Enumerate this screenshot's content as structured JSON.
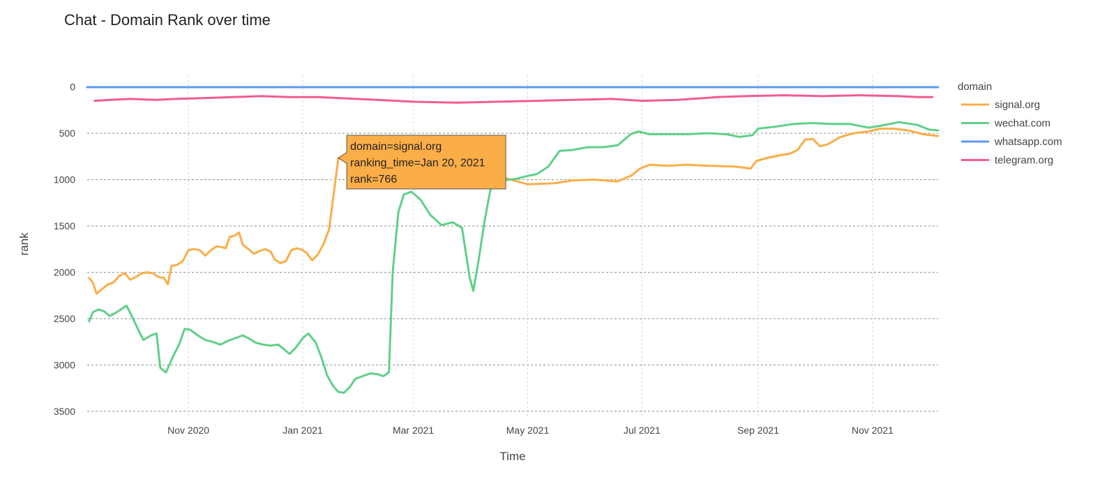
{
  "page": {
    "title": "Chat - Domain Rank over time"
  },
  "chart_data": {
    "type": "line",
    "title": "Chat - Domain Rank over time",
    "xlabel": "Time",
    "ylabel": "rank",
    "y_reversed": true,
    "ylim": [
      3560,
      -50
    ],
    "y_ticks": [
      0,
      500,
      1000,
      1500,
      2000,
      2500,
      3000,
      3500
    ],
    "x_range": [
      "2020-09-08",
      "2021-12-06"
    ],
    "x_ticks": [
      {
        "date": "2020-11-01",
        "label": "Nov 2020"
      },
      {
        "date": "2021-01-01",
        "label": "Jan 2021"
      },
      {
        "date": "2021-03-01",
        "label": "Mar 2021"
      },
      {
        "date": "2021-05-01",
        "label": "May 2021"
      },
      {
        "date": "2021-07-01",
        "label": "Jul 2021"
      },
      {
        "date": "2021-09-01",
        "label": "Sep 2021"
      },
      {
        "date": "2021-11-01",
        "label": "Nov 2021"
      }
    ],
    "grid": true,
    "legend": {
      "title": "domain",
      "placement": "right"
    },
    "series": [
      {
        "name": "signal.org",
        "color": "#fbad48",
        "points": [
          [
            "2020-09-09",
            2060
          ],
          [
            "2020-09-11",
            2110
          ],
          [
            "2020-09-13",
            2230
          ],
          [
            "2020-09-16",
            2180
          ],
          [
            "2020-09-19",
            2130
          ],
          [
            "2020-09-22",
            2110
          ],
          [
            "2020-09-25",
            2040
          ],
          [
            "2020-09-28",
            2010
          ],
          [
            "2020-10-01",
            2080
          ],
          [
            "2020-10-04",
            2050
          ],
          [
            "2020-10-07",
            2010
          ],
          [
            "2020-10-10",
            2000
          ],
          [
            "2020-10-13",
            2010
          ],
          [
            "2020-10-16",
            2050
          ],
          [
            "2020-10-19",
            2060
          ],
          [
            "2020-10-21",
            2130
          ],
          [
            "2020-10-23",
            1930
          ],
          [
            "2020-10-26",
            1920
          ],
          [
            "2020-10-29",
            1880
          ],
          [
            "2020-11-01",
            1760
          ],
          [
            "2020-11-04",
            1750
          ],
          [
            "2020-11-07",
            1760
          ],
          [
            "2020-11-10",
            1820
          ],
          [
            "2020-11-13",
            1760
          ],
          [
            "2020-11-16",
            1720
          ],
          [
            "2020-11-19",
            1730
          ],
          [
            "2020-11-21",
            1740
          ],
          [
            "2020-11-23",
            1620
          ],
          [
            "2020-11-26",
            1600
          ],
          [
            "2020-11-28",
            1570
          ],
          [
            "2020-11-30",
            1700
          ],
          [
            "2020-12-03",
            1750
          ],
          [
            "2020-12-06",
            1800
          ],
          [
            "2020-12-09",
            1770
          ],
          [
            "2020-12-12",
            1750
          ],
          [
            "2020-12-15",
            1780
          ],
          [
            "2020-12-17",
            1860
          ],
          [
            "2020-12-20",
            1900
          ],
          [
            "2020-12-23",
            1880
          ],
          [
            "2020-12-26",
            1760
          ],
          [
            "2020-12-29",
            1740
          ],
          [
            "2021-01-01",
            1760
          ],
          [
            "2021-01-03",
            1790
          ],
          [
            "2021-01-06",
            1870
          ],
          [
            "2021-01-09",
            1810
          ],
          [
            "2021-01-12",
            1700
          ],
          [
            "2021-01-15",
            1540
          ],
          [
            "2021-01-18",
            1080
          ],
          [
            "2021-01-20",
            766
          ],
          [
            "2021-01-22",
            780
          ],
          [
            "2021-01-25",
            800
          ],
          [
            "2021-02-01",
            880
          ],
          [
            "2021-03-01",
            890
          ],
          [
            "2021-04-01",
            900
          ],
          [
            "2021-04-15",
            960
          ],
          [
            "2021-05-01",
            1050
          ],
          [
            "2021-05-15",
            1040
          ],
          [
            "2021-05-25",
            1010
          ],
          [
            "2021-06-05",
            1000
          ],
          [
            "2021-06-18",
            1020
          ],
          [
            "2021-06-25",
            960
          ],
          [
            "2021-06-30",
            880
          ],
          [
            "2021-07-05",
            840
          ],
          [
            "2021-07-15",
            850
          ],
          [
            "2021-07-25",
            840
          ],
          [
            "2021-08-05",
            850
          ],
          [
            "2021-08-20",
            860
          ],
          [
            "2021-08-28",
            880
          ],
          [
            "2021-08-31",
            800
          ],
          [
            "2021-09-05",
            770
          ],
          [
            "2021-09-12",
            740
          ],
          [
            "2021-09-18",
            720
          ],
          [
            "2021-09-22",
            680
          ],
          [
            "2021-09-26",
            570
          ],
          [
            "2021-09-30",
            560
          ],
          [
            "2021-10-04",
            640
          ],
          [
            "2021-10-08",
            620
          ],
          [
            "2021-10-15",
            540
          ],
          [
            "2021-10-22",
            500
          ],
          [
            "2021-10-30",
            480
          ],
          [
            "2021-11-05",
            450
          ],
          [
            "2021-11-12",
            450
          ],
          [
            "2021-11-20",
            470
          ],
          [
            "2021-11-28",
            510
          ],
          [
            "2021-12-06",
            530
          ]
        ]
      },
      {
        "name": "wechat.com",
        "color": "#5fd088",
        "points": [
          [
            "2020-09-09",
            2530
          ],
          [
            "2020-09-11",
            2430
          ],
          [
            "2020-09-14",
            2400
          ],
          [
            "2020-09-17",
            2420
          ],
          [
            "2020-09-20",
            2470
          ],
          [
            "2020-09-23",
            2440
          ],
          [
            "2020-09-26",
            2400
          ],
          [
            "2020-09-29",
            2360
          ],
          [
            "2020-10-02",
            2480
          ],
          [
            "2020-10-05",
            2610
          ],
          [
            "2020-10-08",
            2730
          ],
          [
            "2020-10-12",
            2680
          ],
          [
            "2020-10-15",
            2660
          ],
          [
            "2020-10-17",
            3030
          ],
          [
            "2020-10-20",
            3080
          ],
          [
            "2020-10-24",
            2900
          ],
          [
            "2020-10-27",
            2780
          ],
          [
            "2020-10-30",
            2610
          ],
          [
            "2020-11-02",
            2620
          ],
          [
            "2020-11-06",
            2680
          ],
          [
            "2020-11-10",
            2730
          ],
          [
            "2020-11-14",
            2750
          ],
          [
            "2020-11-18",
            2780
          ],
          [
            "2020-11-22",
            2740
          ],
          [
            "2020-11-26",
            2710
          ],
          [
            "2020-11-30",
            2680
          ],
          [
            "2020-12-03",
            2710
          ],
          [
            "2020-12-07",
            2760
          ],
          [
            "2020-12-11",
            2780
          ],
          [
            "2020-12-15",
            2790
          ],
          [
            "2020-12-19",
            2780
          ],
          [
            "2020-12-22",
            2830
          ],
          [
            "2020-12-25",
            2880
          ],
          [
            "2020-12-28",
            2820
          ],
          [
            "2021-01-01",
            2710
          ],
          [
            "2021-01-04",
            2660
          ],
          [
            "2021-01-08",
            2760
          ],
          [
            "2021-01-11",
            2920
          ],
          [
            "2021-01-14",
            3110
          ],
          [
            "2021-01-17",
            3220
          ],
          [
            "2021-01-20",
            3290
          ],
          [
            "2021-01-23",
            3300
          ],
          [
            "2021-01-26",
            3240
          ],
          [
            "2021-01-29",
            3150
          ],
          [
            "2021-02-02",
            3120
          ],
          [
            "2021-02-06",
            3090
          ],
          [
            "2021-02-10",
            3100
          ],
          [
            "2021-02-13",
            3120
          ],
          [
            "2021-02-16",
            3080
          ],
          [
            "2021-02-18",
            2000
          ],
          [
            "2021-02-21",
            1350
          ],
          [
            "2021-02-24",
            1160
          ],
          [
            "2021-02-28",
            1130
          ],
          [
            "2021-03-05",
            1220
          ],
          [
            "2021-03-10",
            1380
          ],
          [
            "2021-03-16",
            1490
          ],
          [
            "2021-03-22",
            1460
          ],
          [
            "2021-03-27",
            1520
          ],
          [
            "2021-03-31",
            2050
          ],
          [
            "2021-04-02",
            2200
          ],
          [
            "2021-04-05",
            1850
          ],
          [
            "2021-04-08",
            1450
          ],
          [
            "2021-04-11",
            1120
          ],
          [
            "2021-04-14",
            980
          ],
          [
            "2021-04-18",
            1010
          ],
          [
            "2021-04-25",
            990
          ],
          [
            "2021-05-01",
            960
          ],
          [
            "2021-05-06",
            940
          ],
          [
            "2021-05-12",
            860
          ],
          [
            "2021-05-18",
            690
          ],
          [
            "2021-05-25",
            680
          ],
          [
            "2021-06-02",
            650
          ],
          [
            "2021-06-10",
            650
          ],
          [
            "2021-06-18",
            630
          ],
          [
            "2021-06-25",
            510
          ],
          [
            "2021-06-29",
            480
          ],
          [
            "2021-07-05",
            510
          ],
          [
            "2021-07-15",
            510
          ],
          [
            "2021-07-25",
            510
          ],
          [
            "2021-08-05",
            500
          ],
          [
            "2021-08-15",
            510
          ],
          [
            "2021-08-22",
            540
          ],
          [
            "2021-08-29",
            520
          ],
          [
            "2021-09-01",
            450
          ],
          [
            "2021-09-10",
            430
          ],
          [
            "2021-09-20",
            400
          ],
          [
            "2021-09-30",
            390
          ],
          [
            "2021-10-10",
            400
          ],
          [
            "2021-10-20",
            400
          ],
          [
            "2021-10-30",
            440
          ],
          [
            "2021-11-05",
            420
          ],
          [
            "2021-11-15",
            380
          ],
          [
            "2021-11-25",
            410
          ],
          [
            "2021-12-01",
            460
          ],
          [
            "2021-12-06",
            470
          ]
        ]
      },
      {
        "name": "whatsapp.com",
        "color": "#5b9af0",
        "points": [
          [
            "2020-09-08",
            3
          ],
          [
            "2021-03-01",
            3
          ],
          [
            "2021-09-01",
            3
          ],
          [
            "2021-12-06",
            3
          ]
        ]
      },
      {
        "name": "telegram.org",
        "color": "#f25b8f",
        "points": [
          [
            "2020-09-12",
            150
          ],
          [
            "2020-09-20",
            140
          ],
          [
            "2020-10-01",
            130
          ],
          [
            "2020-10-15",
            140
          ],
          [
            "2020-10-25",
            130
          ],
          [
            "2020-11-10",
            120
          ],
          [
            "2020-11-25",
            110
          ],
          [
            "2020-12-10",
            100
          ],
          [
            "2020-12-25",
            110
          ],
          [
            "2021-01-10",
            110
          ],
          [
            "2021-01-20",
            120
          ],
          [
            "2021-02-10",
            140
          ],
          [
            "2021-03-01",
            160
          ],
          [
            "2021-03-25",
            170
          ],
          [
            "2021-04-15",
            160
          ],
          [
            "2021-05-05",
            150
          ],
          [
            "2021-05-25",
            140
          ],
          [
            "2021-06-15",
            130
          ],
          [
            "2021-07-01",
            150
          ],
          [
            "2021-07-20",
            140
          ],
          [
            "2021-08-10",
            110
          ],
          [
            "2021-08-25",
            100
          ],
          [
            "2021-09-15",
            90
          ],
          [
            "2021-10-05",
            100
          ],
          [
            "2021-10-25",
            90
          ],
          [
            "2021-11-15",
            100
          ],
          [
            "2021-11-25",
            110
          ],
          [
            "2021-12-03",
            110
          ]
        ]
      }
    ],
    "tooltip": {
      "series": "signal.org",
      "lines": [
        "domain=signal.org",
        "ranking_time=Jan 20, 2021",
        "rank=766"
      ],
      "anchor": [
        "2021-01-20",
        766
      ]
    }
  }
}
